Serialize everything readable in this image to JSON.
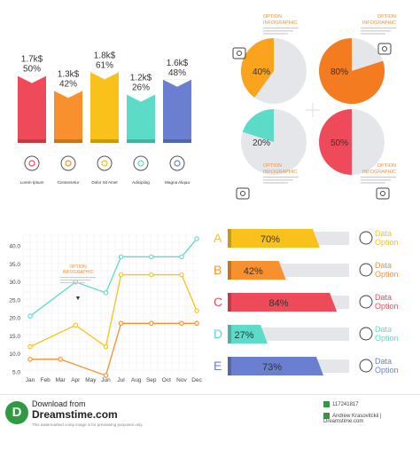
{
  "chart_data": [
    {
      "type": "bar",
      "categories": [
        "Lorem Ipsum",
        "Consectetur",
        "Dolor Sit Amet",
        "Adicipiing",
        "Magna Aliqua"
      ],
      "values": [
        1.7,
        1.3,
        1.8,
        1.2,
        1.6
      ],
      "value_labels": [
        "1.7k$",
        "1.3k$",
        "1.8k$",
        "1.2k$",
        "1.6k$"
      ],
      "percent_labels": [
        "50%",
        "42%",
        "61%",
        "26%",
        "48%"
      ],
      "colors": [
        "#ef4a5a",
        "#f7902d",
        "#f9c11a",
        "#5cdcc8",
        "#6a7fd0"
      ],
      "icons": [
        "award-ribbon-icon",
        "graduation-cap-icon",
        "tree-icon",
        "globe-icon",
        "clock-icon"
      ],
      "ylim": [
        0,
        2
      ]
    },
    {
      "type": "pie",
      "slices": [
        {
          "label": "40%",
          "value": 40,
          "color": "#f9a41c"
        },
        {
          "label": "80%",
          "value": 80,
          "color": "#f47b20"
        },
        {
          "label": "20%",
          "value": 20,
          "color": "#5cdcc8"
        },
        {
          "label": "50%",
          "value": 50,
          "color": "#ef4a5a"
        }
      ],
      "option_labels": [
        "OPTION INFOGRAPHIC",
        "OPTION INFOGRAPHIC",
        "OPTION INFOGRAPHIC",
        "OPTION INFOGRAPHIC"
      ],
      "icons": [
        "hand-card-icon",
        "briefcase-icon",
        "dollar-euro-exchange-icon",
        "money-bill-icon"
      ]
    },
    {
      "type": "line",
      "x": [
        "Jan",
        "Feb",
        "Mar",
        "Apr",
        "May",
        "Jun",
        "Jul",
        "Aug",
        "Sep",
        "Oct",
        "Nov",
        "Dec"
      ],
      "yticks": [
        "5.0",
        "10.0",
        "15.0",
        "20.0",
        "25.0",
        "30.0",
        "35.0",
        "40.0"
      ],
      "ylim": [
        5,
        43
      ],
      "series": [
        {
          "color": "#5cdcc8",
          "values": [
            20.5,
            null,
            null,
            30,
            null,
            27,
            37,
            null,
            37,
            null,
            37,
            42
          ]
        },
        {
          "color": "#f9c11a",
          "values": [
            12,
            null,
            null,
            18,
            null,
            12,
            32,
            null,
            32,
            null,
            32,
            22
          ]
        },
        {
          "color": "#f7902d",
          "values": [
            8.5,
            null,
            8.5,
            null,
            null,
            4,
            18.5,
            null,
            18.5,
            null,
            18.5,
            18.5
          ]
        }
      ],
      "annotation": "OPTION INFOGRAPHIC",
      "marker": "▼"
    },
    {
      "type": "bar",
      "orientation": "horizontal",
      "categories": [
        "A",
        "B",
        "C",
        "D",
        "E"
      ],
      "values": [
        70,
        42,
        84,
        27,
        73
      ],
      "value_labels": [
        "70%",
        "42%",
        "84%",
        "27%",
        "73%"
      ],
      "colors": [
        "#f9c11a",
        "#f7902d",
        "#ef4a5a",
        "#5cdcc8",
        "#6a7fd0"
      ],
      "option_label_line1": "Data",
      "option_label_line2": "Option",
      "icons": [
        "head-gears-icon",
        "pie-chart-icon",
        "trend-arrow-icon",
        "documents-icon",
        "target-icon"
      ],
      "xlim": [
        0,
        100
      ]
    }
  ],
  "footer": {
    "logo_letter": "D",
    "download_text": "Download from",
    "brand": "Dreamstime.com",
    "fine_print": "This watermarked comp image is for previewing purposes only.",
    "id_text": "117241817",
    "author_text": "Andrew Krasovitckii | Dreamstime.com"
  }
}
